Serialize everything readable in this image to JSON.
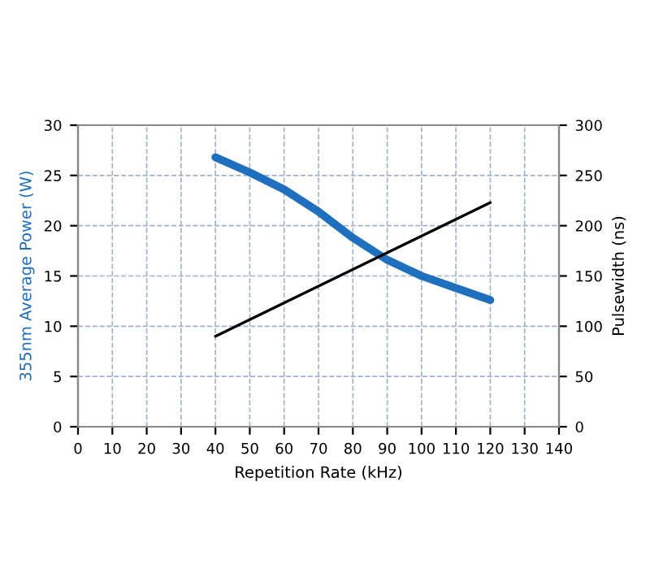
{
  "chart_data": {
    "type": "line",
    "xlabel": "Repetition Rate (kHz)",
    "ylabel": "355nm Average Power (W)",
    "y2label": "Pulsewidth (ns)",
    "series": [
      {
        "color": "#1f6fbf",
        "x": [
          40,
          50,
          60,
          70,
          80,
          90,
          100,
          110,
          120
        ],
        "values": [
          26.8,
          25.3,
          23.6,
          21.4,
          18.8,
          16.6,
          15.0,
          13.8,
          12.6
        ]
      },
      {
        "color": "#000000",
        "axis": "y2",
        "x": [
          40,
          120
        ],
        "values": [
          90,
          223
        ]
      }
    ],
    "xlim": [
      0,
      140
    ],
    "xticks": [
      0,
      10,
      20,
      30,
      40,
      50,
      60,
      70,
      80,
      90,
      100,
      110,
      120,
      130,
      140
    ],
    "ylim": [
      0,
      30
    ],
    "yticks": [
      0,
      5,
      10,
      15,
      20,
      25,
      30
    ],
    "y2lim": [
      0,
      300
    ],
    "y2ticks": [
      0,
      50,
      100,
      150,
      200,
      250,
      300
    ],
    "grid": true,
    "line_style": "solid",
    "marker": "none"
  }
}
